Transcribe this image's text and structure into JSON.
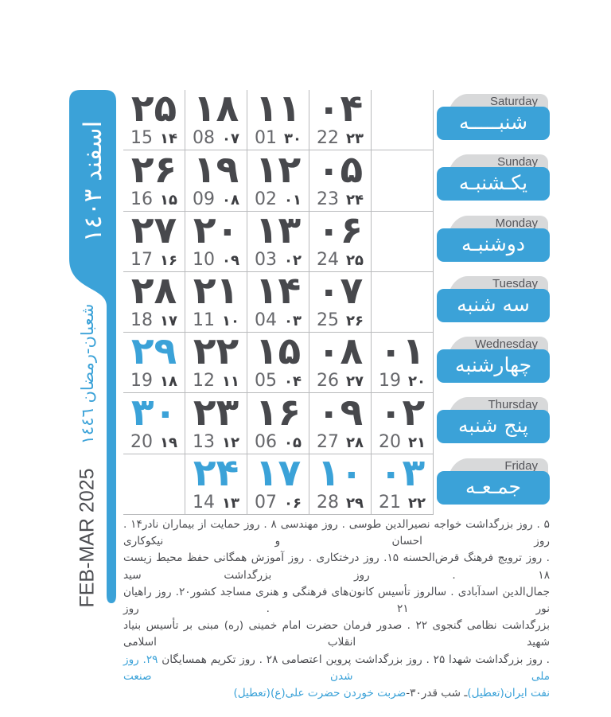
{
  "sidebar": {
    "month_title": "اسفند ١٤٠٣",
    "lunar_range": "شعبان-رمضان ١٤٤٦",
    "gregorian_range": "FEB-MAR 2025"
  },
  "colors": {
    "accent": "#3ba2d8",
    "number_dark": "#47484c",
    "gregorian_gray": "#66676b",
    "hijri_dark": "#3e3f43",
    "grid_line": "#b9babc",
    "tab_gray": "#d8d9da",
    "english_label": "#54555a",
    "footer_text": "#4d4e52"
  },
  "weekdays": [
    {
      "en": "Saturday",
      "fa": "شنبـــــه",
      "cells": [
        {
          "day": "۲۵",
          "greg": "15",
          "hijri": "۱۴",
          "holiday": false
        },
        {
          "day": "۱۸",
          "greg": "08",
          "hijri": "۰۷",
          "holiday": false
        },
        {
          "day": "۱۱",
          "greg": "01",
          "hijri": "۳۰",
          "holiday": false
        },
        {
          "day": "۰۴",
          "greg": "22",
          "hijri": "۲۳",
          "holiday": false
        },
        null
      ]
    },
    {
      "en": "Sunday",
      "fa": "یکـشنبـه",
      "cells": [
        {
          "day": "۲۶",
          "greg": "16",
          "hijri": "۱۵",
          "holiday": false
        },
        {
          "day": "۱۹",
          "greg": "09",
          "hijri": "۰۸",
          "holiday": false
        },
        {
          "day": "۱۲",
          "greg": "02",
          "hijri": "۰۱",
          "holiday": false
        },
        {
          "day": "۰۵",
          "greg": "23",
          "hijri": "۲۴",
          "holiday": false
        },
        null
      ]
    },
    {
      "en": "Monday",
      "fa": "دوشنبـه",
      "cells": [
        {
          "day": "۲۷",
          "greg": "17",
          "hijri": "۱۶",
          "holiday": false
        },
        {
          "day": "۲۰",
          "greg": "10",
          "hijri": "۰۹",
          "holiday": false
        },
        {
          "day": "۱۳",
          "greg": "03",
          "hijri": "۰۲",
          "holiday": false
        },
        {
          "day": "۰۶",
          "greg": "24",
          "hijri": "۲۵",
          "holiday": false
        },
        null
      ]
    },
    {
      "en": "Tuesday",
      "fa": "سه شنبه",
      "cells": [
        {
          "day": "۲۸",
          "greg": "18",
          "hijri": "۱۷",
          "holiday": false
        },
        {
          "day": "۲۱",
          "greg": "11",
          "hijri": "۱۰",
          "holiday": false
        },
        {
          "day": "۱۴",
          "greg": "04",
          "hijri": "۰۳",
          "holiday": false
        },
        {
          "day": "۰۷",
          "greg": "25",
          "hijri": "۲۶",
          "holiday": false
        },
        null
      ]
    },
    {
      "en": "Wednesday",
      "fa": "چهارشنبه",
      "cells": [
        {
          "day": "۲۹",
          "greg": "19",
          "hijri": "۱۸",
          "holiday": true
        },
        {
          "day": "۲۲",
          "greg": "12",
          "hijri": "۱۱",
          "holiday": false
        },
        {
          "day": "۱۵",
          "greg": "05",
          "hijri": "۰۴",
          "holiday": false
        },
        {
          "day": "۰۸",
          "greg": "26",
          "hijri": "۲۷",
          "holiday": false
        },
        {
          "day": "۰۱",
          "greg": "19",
          "hijri": "۲۰",
          "holiday": false
        }
      ]
    },
    {
      "en": "Thursday",
      "fa": "پنج شنبه",
      "cells": [
        {
          "day": "۳۰",
          "greg": "20",
          "hijri": "۱۹",
          "holiday": true
        },
        {
          "day": "۲۳",
          "greg": "13",
          "hijri": "۱۲",
          "holiday": false
        },
        {
          "day": "۱۶",
          "greg": "06",
          "hijri": "۰۵",
          "holiday": false
        },
        {
          "day": "۰۹",
          "greg": "27",
          "hijri": "۲۸",
          "holiday": false
        },
        {
          "day": "۰۲",
          "greg": "20",
          "hijri": "۲۱",
          "holiday": false
        }
      ]
    },
    {
      "en": "Friday",
      "fa": "جمـعـه",
      "cells": [
        null,
        {
          "day": "۲۴",
          "greg": "14",
          "hijri": "۱۳",
          "holiday": true
        },
        {
          "day": "۱۷",
          "greg": "07",
          "hijri": "۰۶",
          "holiday": true
        },
        {
          "day": "۱۰",
          "greg": "28",
          "hijri": "۲۹",
          "holiday": true
        },
        {
          "day": "۰۳",
          "greg": "21",
          "hijri": "۲۲",
          "holiday": true
        }
      ]
    }
  ],
  "occasions_lines": [
    [
      {
        "text": "۵ . روز بزرگداشت خواجه نصیرالدین طوسی . روز مهندسی ۸ . روز حمایت از بیماران نادر۱۴ . روز احسان و نیکوکاری",
        "color": "dark"
      }
    ],
    [
      {
        "text": ". روز ترویج فرهنگ قرض‌الحسنه ۱۵. روز درختکاری . روز آموزش همگانی حفظ محیط زیست ۱۸ . روز بزرگداشت سید",
        "color": "dark"
      }
    ],
    [
      {
        "text": "جمال‌الدین اسدآبادی . سالروز تأسیس کانون‌های فرهنگی و هنری مساجد کشور۲۰. روز راهیان نور ۲۱ . روز",
        "color": "dark"
      }
    ],
    [
      {
        "text": "بزرگداشت نظامی گنجوی ۲۲ . صدور فرمان حضرت امام خمینی (ره) مبنی بر تأسیس بنیاد شهید انقلاب اسلامی",
        "color": "dark"
      }
    ],
    [
      {
        "text": ". روز بزرگداشت شهدا ۲۵ . روز بزرگداشت پروین اعتصامی ۲۸ . روز تکریم همسایگان ",
        "color": "dark"
      },
      {
        "text": "۲۹. روز ملی شدن صنعت",
        "color": "blue"
      }
    ],
    [
      {
        "text": "نفت ایران(تعطیل)",
        "color": "blue"
      },
      {
        "text": "ـ شب قدر۳۰-",
        "color": "dark"
      },
      {
        "text": "ضربت خوردن حضرت علی(ع)(تعطیل)",
        "color": "blue"
      }
    ]
  ]
}
